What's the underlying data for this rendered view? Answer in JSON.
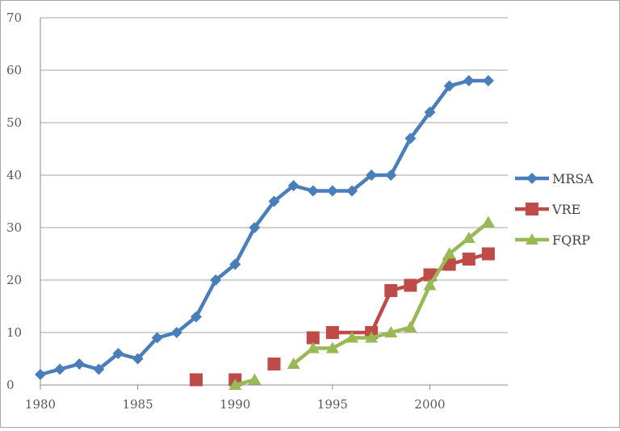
{
  "chart_data": {
    "type": "line",
    "title": "",
    "xlabel": "",
    "ylabel": "",
    "xlim": [
      1980,
      2004
    ],
    "ylim": [
      0,
      70
    ],
    "x_ticks": [
      1980,
      1985,
      1990,
      1995,
      2000
    ],
    "y_ticks": [
      0,
      10,
      20,
      30,
      40,
      50,
      60,
      70
    ],
    "grid": "horizontal",
    "legend_position": "right",
    "series": [
      {
        "name": "MRSA",
        "color": "#4a7ebb",
        "marker": "diamond",
        "x": [
          1980,
          1981,
          1982,
          1983,
          1984,
          1985,
          1986,
          1987,
          1988,
          1989,
          1990,
          1991,
          1992,
          1993,
          1994,
          1995,
          1996,
          1997,
          1998,
          1999,
          2000,
          2001,
          2002,
          2003
        ],
        "y": [
          2,
          3,
          4,
          3,
          6,
          5,
          9,
          10,
          13,
          20,
          23,
          30,
          35,
          38,
          37,
          37,
          37,
          40,
          40,
          47,
          52,
          57,
          58,
          58
        ]
      },
      {
        "name": "VRE",
        "color": "#be4b48",
        "marker": "square",
        "x": [
          1988,
          1990,
          1992,
          1994,
          1995,
          1997,
          1998,
          1999,
          2000,
          2001,
          2002,
          2003
        ],
        "y": [
          1,
          1,
          4,
          9,
          10,
          10,
          18,
          19,
          21,
          23,
          24,
          25
        ],
        "connected_from_index": 4
      },
      {
        "name": "FQRP",
        "color": "#98b954",
        "marker": "triangle",
        "x": [
          1990,
          1991,
          1993,
          1994,
          1995,
          1996,
          1997,
          1998,
          1999,
          2000,
          2001,
          2002,
          2003
        ],
        "y": [
          0,
          1,
          4,
          7,
          7,
          9,
          9,
          10,
          11,
          19,
          25,
          28,
          31
        ],
        "segments": [
          [
            0,
            1
          ],
          [
            2,
            12
          ]
        ]
      }
    ]
  }
}
